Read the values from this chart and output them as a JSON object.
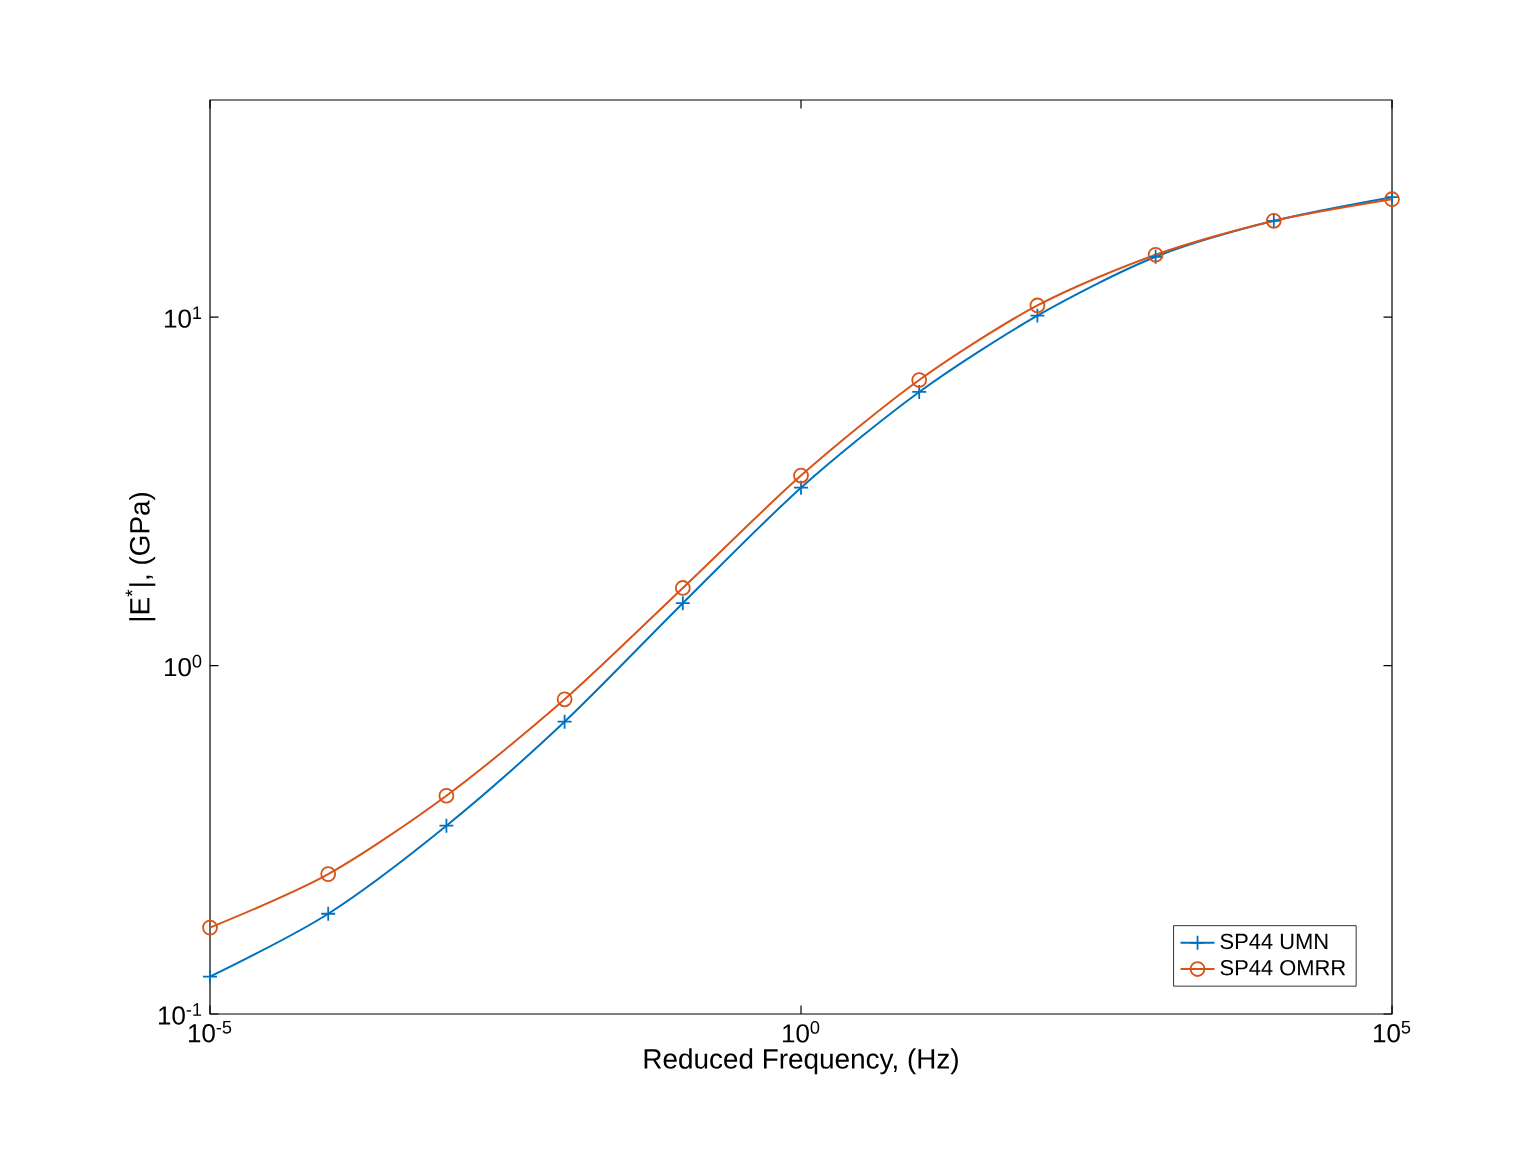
{
  "chart_data": {
    "type": "line",
    "xlabel": "Reduced Frequency, (Hz)",
    "ylabel": "|E$^{*}$|, (GPa)",
    "log": "xy",
    "legend": "bottom right",
    "line_style": "solid",
    "x": [
      1e-05,
      0.0001,
      0.001,
      0.01,
      0.1,
      1,
      10,
      100,
      1000,
      10000,
      100000
    ],
    "xlim": [
      1e-05,
      100000.0
    ],
    "ylim": [
      0.1,
      42
    ],
    "xticks": [
      {
        "value": 1e-05,
        "label": "10$^{-5}$"
      },
      {
        "value": 1,
        "label": "10$^{0}$"
      },
      {
        "value": 100000.0,
        "label": "10$^{5}$"
      }
    ],
    "yticks": [
      {
        "value": 0.1,
        "label": "10$^{-1}$"
      },
      {
        "value": 1,
        "label": "10$^{0}$"
      },
      {
        "value": 10,
        "label": "10$^{1}$"
      }
    ],
    "series": [
      {
        "name": "SP44 UMN",
        "color": "#0072bd",
        "marker": "cross",
        "values": [
          0.128,
          0.194,
          0.347,
          0.69,
          1.51,
          3.24,
          6.1,
          10.1,
          14.9,
          18.9,
          22.1
        ]
      },
      {
        "name": "SP44 OMRR",
        "color": "#d95319",
        "marker": "circle",
        "values": [
          0.177,
          0.252,
          0.423,
          0.8,
          1.67,
          3.51,
          6.6,
          10.8,
          15.1,
          18.9,
          21.8
        ]
      }
    ]
  }
}
